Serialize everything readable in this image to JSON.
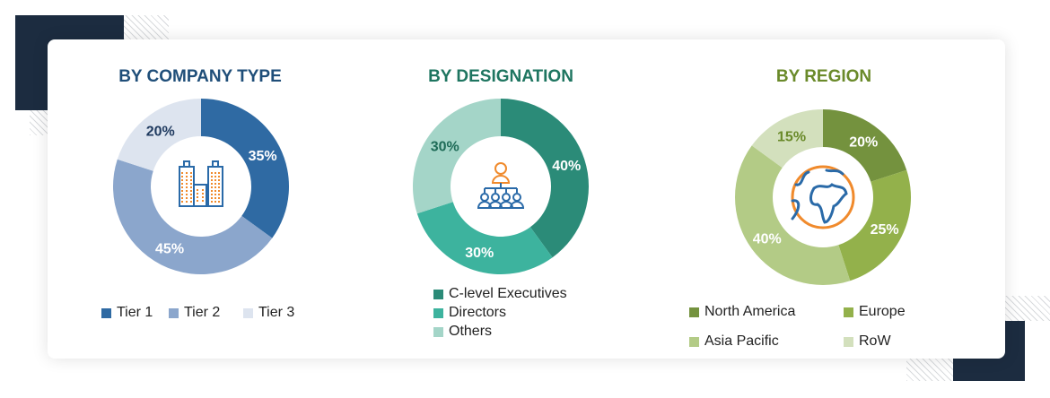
{
  "chart_data": [
    {
      "type": "pie",
      "title": "BY COMPANY TYPE",
      "title_color": "#1f4e79",
      "icon": "buildings-icon",
      "categories": [
        "Tier 1",
        "Tier 2",
        "Tier 3"
      ],
      "values": [
        35,
        45,
        20
      ],
      "labels": [
        "35%",
        "45%",
        "20%"
      ],
      "colors": [
        "#2f6aa3",
        "#8ba6cc",
        "#dde4ef"
      ],
      "label_colors": [
        "#ffffff",
        "#ffffff",
        "#1f3a5f"
      ],
      "legend": "bottom"
    },
    {
      "type": "pie",
      "title": "BY DESIGNATION",
      "title_color": "#1e7560",
      "icon": "org-chart-people-icon",
      "categories": [
        "C-level Executives",
        "Directors",
        "Others"
      ],
      "values": [
        40,
        30,
        30
      ],
      "labels": [
        "40%",
        "30%",
        "30%"
      ],
      "colors": [
        "#2b8b78",
        "#3db39e",
        "#a4d5c8"
      ],
      "label_colors": [
        "#ffffff",
        "#ffffff",
        "#1e6b57"
      ],
      "legend": "bottom"
    },
    {
      "type": "pie",
      "title": "BY REGION",
      "title_color": "#6a8a2a",
      "icon": "globe-icon",
      "categories": [
        "North America",
        "Europe",
        "Asia Pacific",
        "RoW"
      ],
      "values": [
        20,
        25,
        40,
        15
      ],
      "labels": [
        "20%",
        "25%",
        "40%",
        "15%"
      ],
      "colors": [
        "#74923e",
        "#93b14b",
        "#b3cb86",
        "#d3e0bd"
      ],
      "label_colors": [
        "#ffffff",
        "#ffffff",
        "#ffffff",
        "#6a8a2a"
      ],
      "legend": "bottom"
    }
  ]
}
